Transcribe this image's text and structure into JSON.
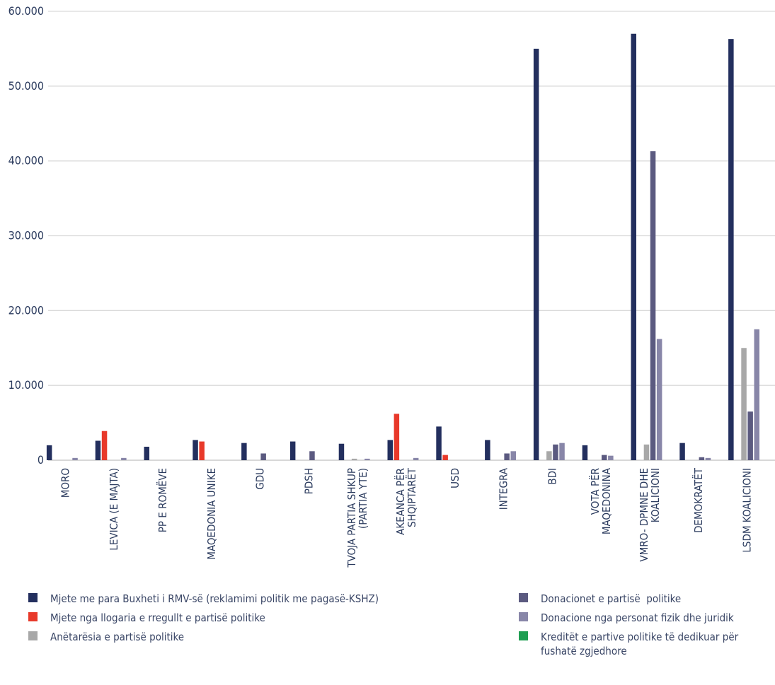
{
  "chart_data": {
    "type": "bar",
    "ylim": [
      0,
      60000
    ],
    "yticks": [
      "0",
      "10.000",
      "20.000",
      "30.000",
      "40.000",
      "50.000",
      "60.000"
    ],
    "ytick_values": [
      0,
      10000,
      20000,
      30000,
      40000,
      50000,
      60000
    ],
    "grid": true,
    "legend_position": "bottom",
    "categories": [
      [
        "MORO"
      ],
      [
        "LEVICA (E MAJTA)"
      ],
      [
        "PP E ROMËVE"
      ],
      [
        "MAQEDONIA UNIKE"
      ],
      [
        "GDU"
      ],
      [
        "PDSH"
      ],
      [
        "TVOJA PARTIA SHKUP",
        "(PARTIA YTE)"
      ],
      [
        "AKEANCA PËR",
        "SHQIPTARËT"
      ],
      [
        "USD"
      ],
      [
        "INTEGRA"
      ],
      [
        "BDI"
      ],
      [
        "VOTA PËR",
        "MAQEDONINA"
      ],
      [
        "VMRO- DPMNE DHE",
        "KOALICIONI"
      ],
      [
        "DEMOKRATËT"
      ],
      [
        "LSDM KOALICIONI"
      ]
    ],
    "series": [
      {
        "name": "Mjete me para Buxheti i RMV-së (reklamimi politik me pagasë-KSHZ)",
        "color": "#232f5e",
        "values": [
          2000,
          2600,
          1800,
          2700,
          2300,
          2500,
          2200,
          2700,
          4500,
          2700,
          55000,
          2000,
          57000,
          2300,
          56300
        ]
      },
      {
        "name": "Mjete nga llogaria e rregullt e partisë politike",
        "color": "#e8392a",
        "values": [
          0,
          3900,
          0,
          2500,
          0,
          0,
          0,
          6200,
          700,
          0,
          0,
          0,
          0,
          0,
          0
        ]
      },
      {
        "name": "Anëtarësia e partisë politike",
        "color": "#a8a8a8",
        "values": [
          0,
          0,
          0,
          0,
          0,
          0,
          200,
          0,
          0,
          0,
          1200,
          0,
          2100,
          0,
          15000
        ]
      },
      {
        "name": "Donacionet e partisë  politike",
        "color": "#5b5a80",
        "values": [
          0,
          0,
          0,
          0,
          900,
          1200,
          0,
          0,
          0,
          900,
          2100,
          700,
          41300,
          400,
          6500
        ]
      },
      {
        "name": "Donacione nga personat fizik dhe juridik",
        "color": "#8886a8",
        "values": [
          300,
          300,
          0,
          0,
          0,
          0,
          200,
          300,
          0,
          1200,
          2300,
          600,
          16200,
          300,
          17500
        ]
      },
      {
        "name": "Kreditët e partive politike të dedikuar për fushatë zgjedhore",
        "color": "#1f9e52",
        "values": [
          0,
          0,
          0,
          0,
          0,
          0,
          0,
          0,
          0,
          0,
          0,
          0,
          0,
          0,
          0
        ]
      }
    ]
  },
  "legend": {
    "left": [
      {
        "label": "Mjete me para Buxheti i RMV-së (reklamimi politik me pagasë-KSHZ)",
        "color": "#232f5e"
      },
      {
        "label": "Mjete nga llogaria e rregullt e partisë politike",
        "color": "#e8392a"
      },
      {
        "label": "Anëtarësia e partisë politike",
        "color": "#a8a8a8"
      }
    ],
    "right": [
      {
        "label": "Donacionet e partisë  politike",
        "color": "#5b5a80"
      },
      {
        "label": "Donacione nga personat fizik dhe juridik",
        "color": "#8886a8"
      },
      {
        "label": "Kreditët e partive politike të dedikuar për\nfushatë zgjedhore",
        "color": "#1f9e52"
      }
    ]
  }
}
